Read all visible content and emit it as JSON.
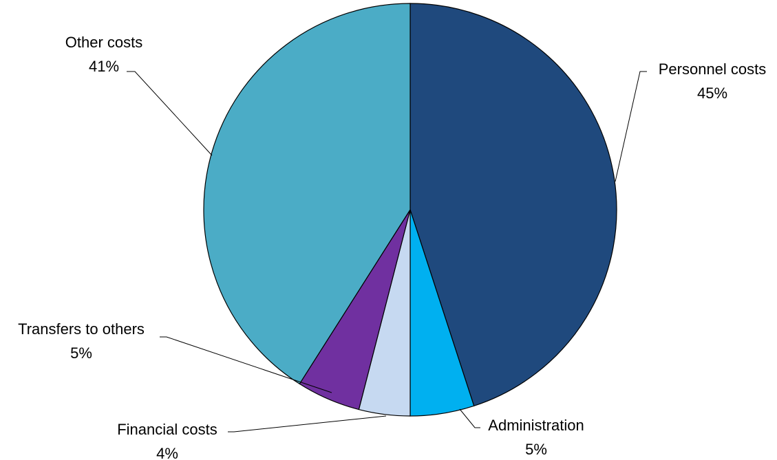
{
  "chart_data": {
    "type": "pie",
    "start_angle_deg": 0,
    "direction": "clockwise",
    "slices": [
      {
        "name": "Personnel costs",
        "value": 45,
        "label": "45%",
        "color": "#1f497d"
      },
      {
        "name": "Administration",
        "value": 5,
        "label": "5%",
        "color": "#00b0f0"
      },
      {
        "name": "Financial costs",
        "value": 4,
        "label": "4%",
        "color": "#c6d9f1"
      },
      {
        "name": "Transfers to others",
        "value": 5,
        "label": "5%",
        "color": "#7030a0"
      },
      {
        "name": "Other costs",
        "value": 41,
        "label": "41%",
        "color": "#4bacc6"
      }
    ]
  }
}
